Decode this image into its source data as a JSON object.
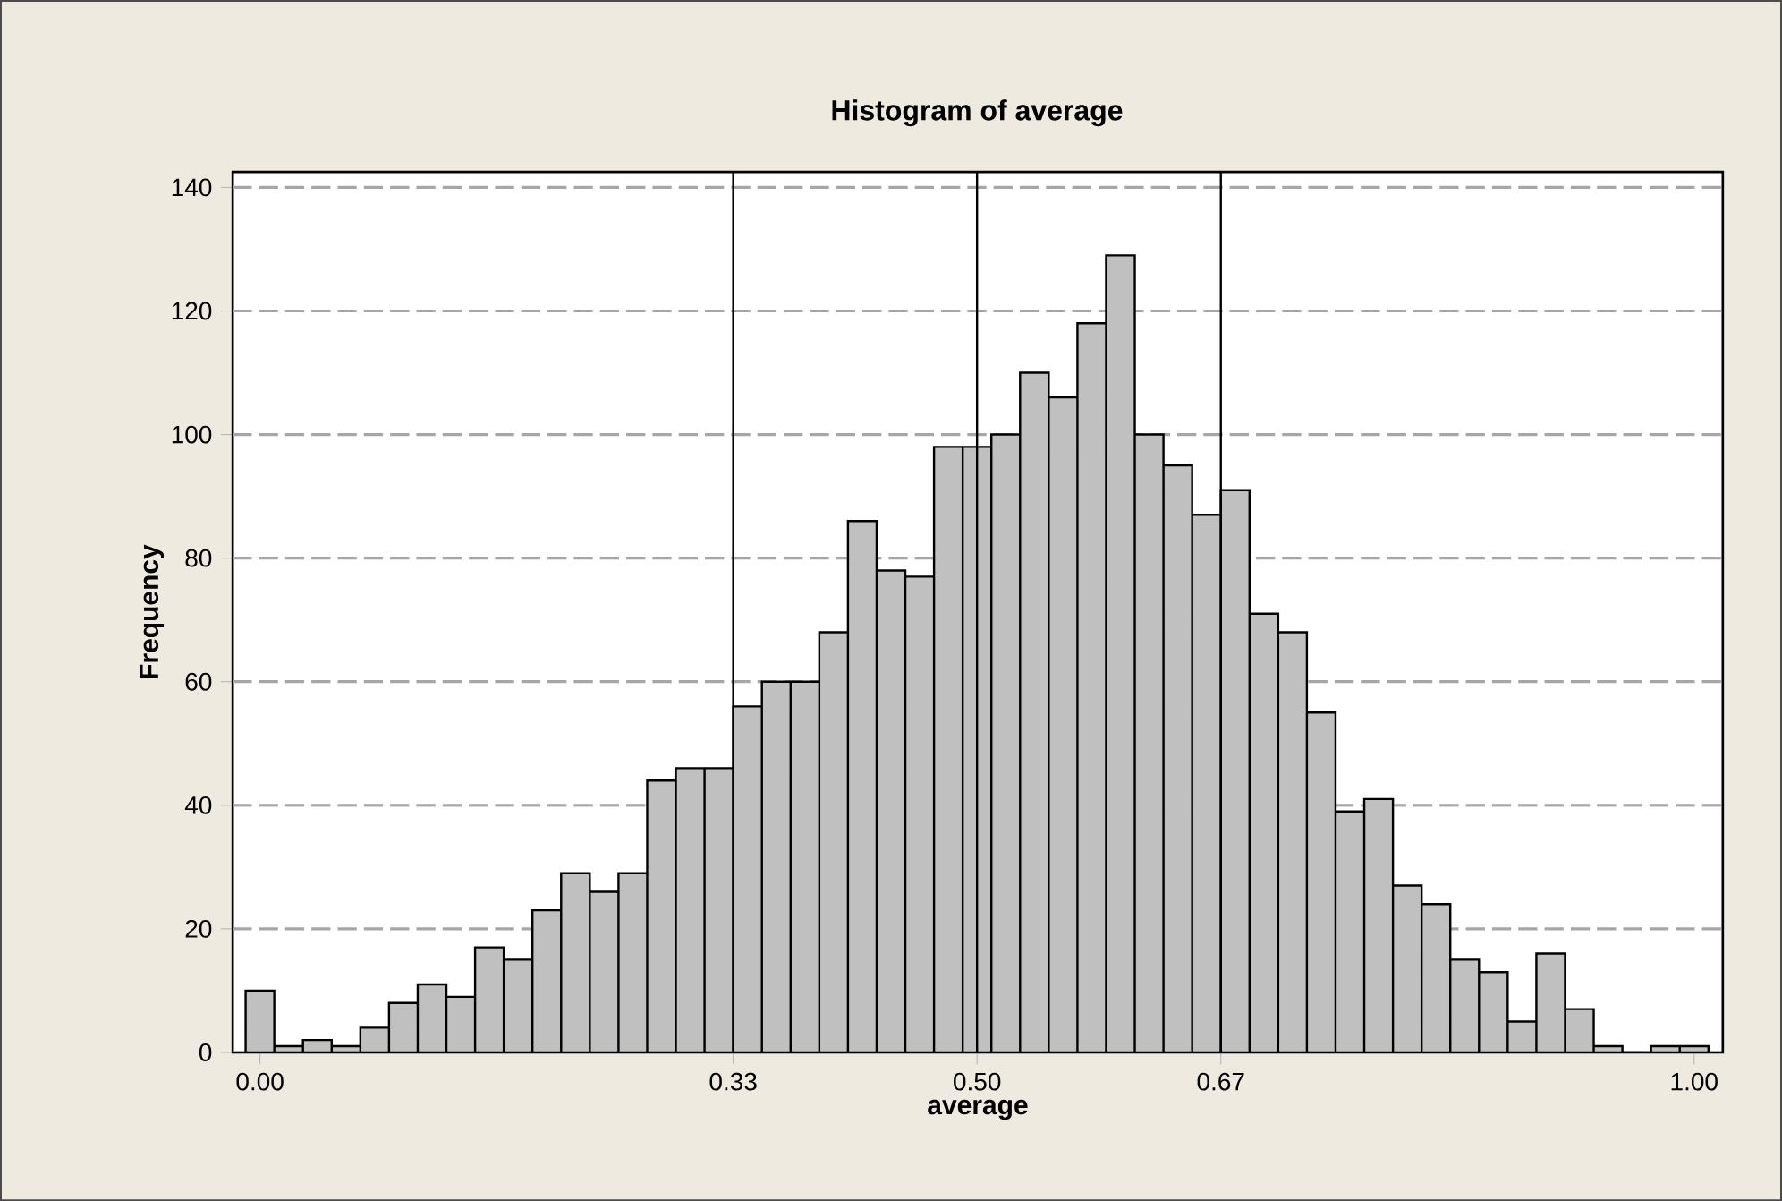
{
  "chart_data": {
    "type": "histogram",
    "title": "Histogram of average",
    "xlabel": "average",
    "ylabel": "Frequency",
    "bins": [
      -0.01,
      0.01,
      0.03,
      0.05,
      0.07,
      0.09,
      0.11,
      0.13,
      0.15,
      0.17,
      0.19,
      0.21,
      0.23,
      0.25,
      0.27,
      0.29,
      0.31,
      0.33,
      0.35,
      0.37,
      0.39,
      0.41,
      0.43,
      0.45,
      0.47,
      0.49,
      0.51,
      0.53,
      0.55,
      0.57,
      0.59,
      0.61,
      0.63,
      0.65,
      0.67,
      0.69,
      0.71,
      0.73,
      0.75,
      0.77,
      0.79,
      0.81,
      0.83,
      0.85,
      0.87,
      0.89,
      0.91,
      0.93,
      0.95,
      0.97,
      0.99,
      1.01
    ],
    "values": [
      10,
      1,
      2,
      1,
      4,
      8,
      11,
      9,
      17,
      15,
      23,
      29,
      26,
      29,
      44,
      46,
      46,
      56,
      60,
      60,
      68,
      86,
      78,
      77,
      98,
      98,
      100,
      110,
      106,
      118,
      129,
      100,
      95,
      87,
      91,
      71,
      68,
      55,
      39,
      41,
      27,
      24,
      15,
      13,
      5,
      16,
      7,
      1,
      0,
      1,
      1
    ],
    "color": "#c0c0c0",
    "xlim": [
      -0.019,
      1.02
    ],
    "ylim": [
      0,
      142.5
    ],
    "xticks": [
      {
        "value": 0,
        "label": "0.00"
      },
      {
        "value": 0.33,
        "label": "0.33"
      },
      {
        "value": 0.5,
        "label": "0.50"
      },
      {
        "value": 0.67,
        "label": "0.67"
      },
      {
        "value": 1,
        "label": "1.00"
      }
    ],
    "yticks": [
      0,
      20,
      40,
      60,
      80,
      100,
      120,
      140
    ],
    "grid": "y",
    "ref_lines": [
      {
        "axis": "x",
        "value": 0.33,
        "color": "#000000"
      },
      {
        "axis": "x",
        "value": 0.5,
        "color": "#000000"
      },
      {
        "axis": "x",
        "value": 0.67,
        "color": "#000000"
      }
    ]
  }
}
